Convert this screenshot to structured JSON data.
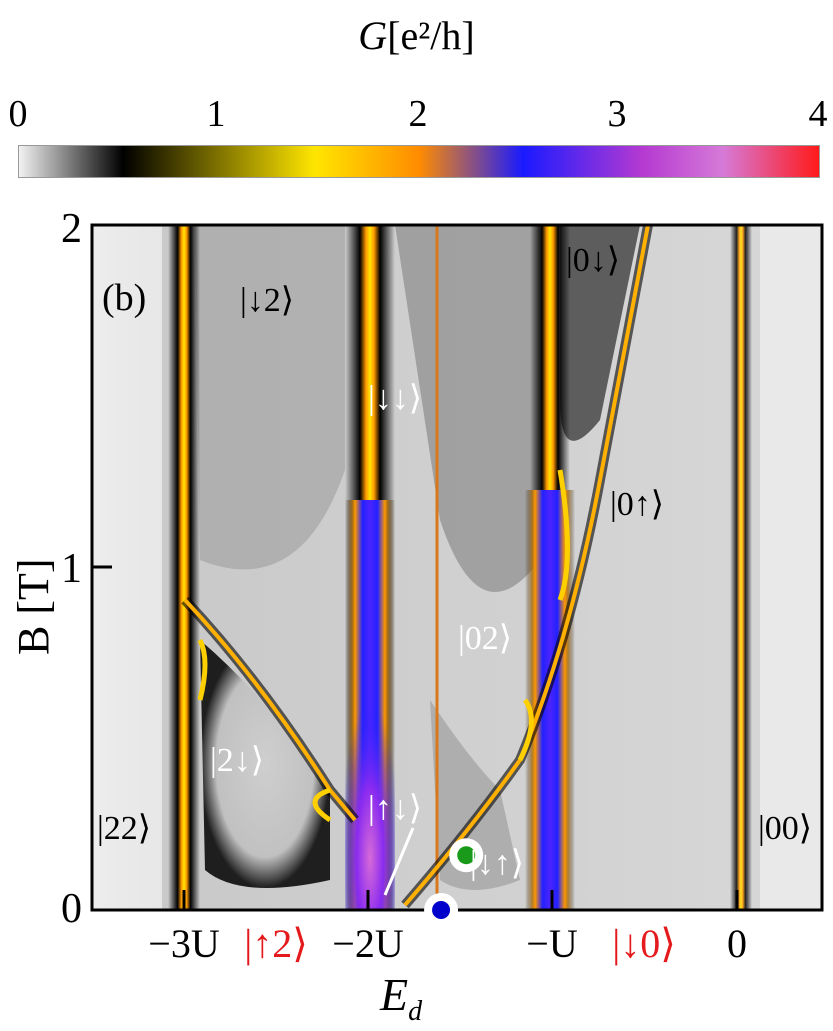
{
  "chart_data": {
    "type": "heatmap",
    "panel_label": "(b)",
    "colorbar": {
      "label_script": "G",
      "label_units": "[e²/h]",
      "ticks": [
        "0",
        "1",
        "2",
        "3",
        "4"
      ],
      "range": [
        0,
        4
      ],
      "colors": [
        "#f2f2f2",
        "#000000",
        "#ffe600",
        "#ff8c00",
        "#1a1aff",
        "#b53ad1",
        "#d67ad8",
        "#ff1a1a"
      ]
    },
    "xlabel": "E",
    "xlabel_sub": "d",
    "ylabel": "B [T]",
    "y_ticks": [
      "0",
      "1",
      "2"
    ],
    "ylim": [
      0,
      2
    ],
    "x_ticks": [
      {
        "label": "−3U",
        "value": -3,
        "color": "#000000"
      },
      {
        "label": "|↑2⟩",
        "value": -2.5,
        "color": "#e41a1c"
      },
      {
        "label": "−2U",
        "value": -2,
        "color": "#000000"
      },
      {
        "label": "−U",
        "value": -1,
        "color": "#000000"
      },
      {
        "label": "|↓0⟩",
        "value": -0.5,
        "color": "#e41a1c"
      },
      {
        "label": "0",
        "value": 0,
        "color": "#000000"
      }
    ],
    "xlim": [
      -3.85,
      0.5
    ],
    "state_labels": [
      {
        "text": "|↓2⟩",
        "color": "black"
      },
      {
        "text": "|↓↓⟩",
        "color": "white"
      },
      {
        "text": "|0↓⟩",
        "color": "black"
      },
      {
        "text": "|0↑⟩",
        "color": "black"
      },
      {
        "text": "|02⟩",
        "color": "white"
      },
      {
        "text": "|2↓⟩",
        "color": "white"
      },
      {
        "text": "|↑↓⟩",
        "color": "white"
      },
      {
        "text": "|↓↑⟩",
        "color": "white"
      },
      {
        "text": "|22⟩",
        "color": "black"
      },
      {
        "text": "|00⟩",
        "color": "black"
      }
    ],
    "markers": [
      {
        "name": "blue-point",
        "x": -1.77,
        "B": 0.0,
        "color": "#0000cc"
      },
      {
        "name": "green-point",
        "x": -1.62,
        "B": 0.16,
        "color": "#1a9a1a"
      }
    ]
  }
}
